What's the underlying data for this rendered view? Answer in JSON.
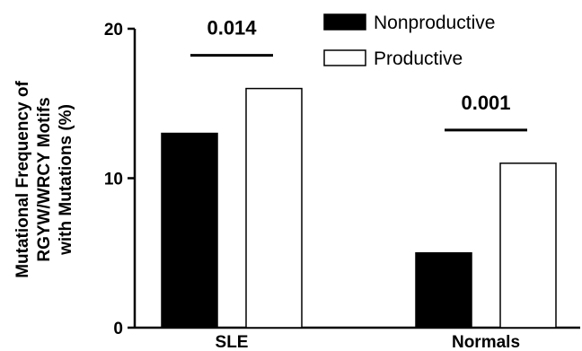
{
  "chart_data": {
    "type": "bar",
    "categories": [
      "SLE",
      "Normals"
    ],
    "series": [
      {
        "name": "Nonproductive",
        "values": [
          13,
          5
        ],
        "fill": "#000000"
      },
      {
        "name": "Productive",
        "values": [
          16,
          11
        ],
        "fill": "#ffffff"
      }
    ],
    "ylabel_lines": [
      "Mutational Frequency of",
      "RGYW/WRCY Motifs",
      "with Mutations (%)"
    ],
    "ylim": [
      0,
      20
    ],
    "yticks": [
      "0",
      "10",
      "20"
    ],
    "annotations": [
      {
        "category": "SLE",
        "text": "0.014"
      },
      {
        "category": "Normals",
        "text": "0.001"
      }
    ],
    "legend_position": "top-right",
    "grid": false
  }
}
